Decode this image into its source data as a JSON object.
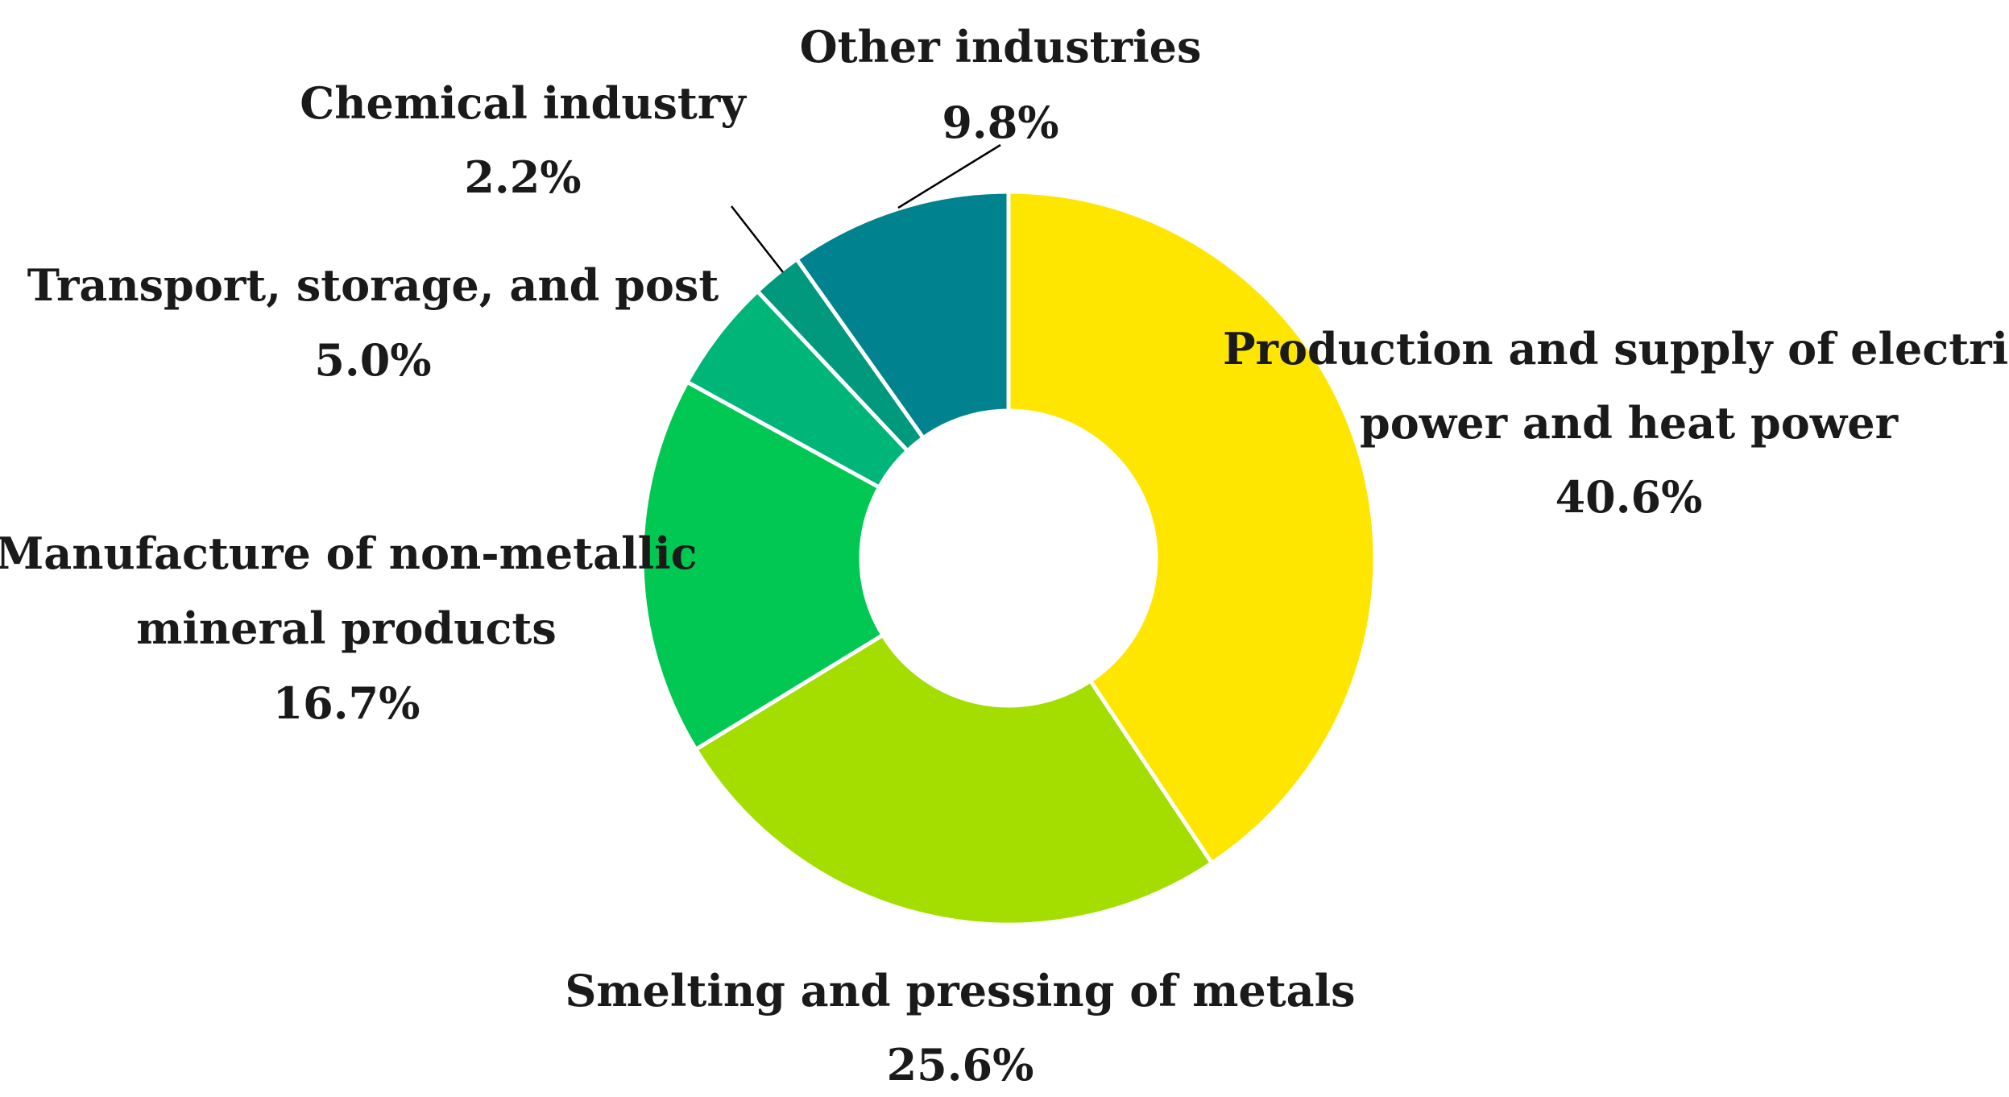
{
  "chart_data": {
    "type": "pie",
    "title": "",
    "donut": true,
    "unit": "%",
    "slices": [
      {
        "label": "Production and supply of electric power and heat power",
        "label_lines": [
          "Production and supply of electric",
          "power and heat power"
        ],
        "value": 40.6,
        "value_label": "40.6%",
        "color": "#FFE600"
      },
      {
        "label": "Smelting and pressing of metals",
        "label_lines": [
          "Smelting and pressing of metals"
        ],
        "value": 25.6,
        "value_label": "25.6%",
        "color": "#A3DE00"
      },
      {
        "label": "Manufacture of non-metallic mineral products",
        "label_lines": [
          "Manufacture of non-metallic",
          "mineral products"
        ],
        "value": 16.7,
        "value_label": "16.7%",
        "color": "#00C853"
      },
      {
        "label": "Transport, storage, and post",
        "label_lines": [
          "Transport, storage, and post"
        ],
        "value": 5.0,
        "value_label": "5.0%",
        "color": "#00B578"
      },
      {
        "label": "Chemical industry",
        "label_lines": [
          "Chemical industry"
        ],
        "value": 2.2,
        "value_label": "2.2%",
        "color": "#00997E"
      },
      {
        "label": "Other industries",
        "label_lines": [
          "Other industries"
        ],
        "value": 9.8,
        "value_label": "9.8%",
        "color": "#00828F"
      }
    ],
    "legend": "none"
  }
}
